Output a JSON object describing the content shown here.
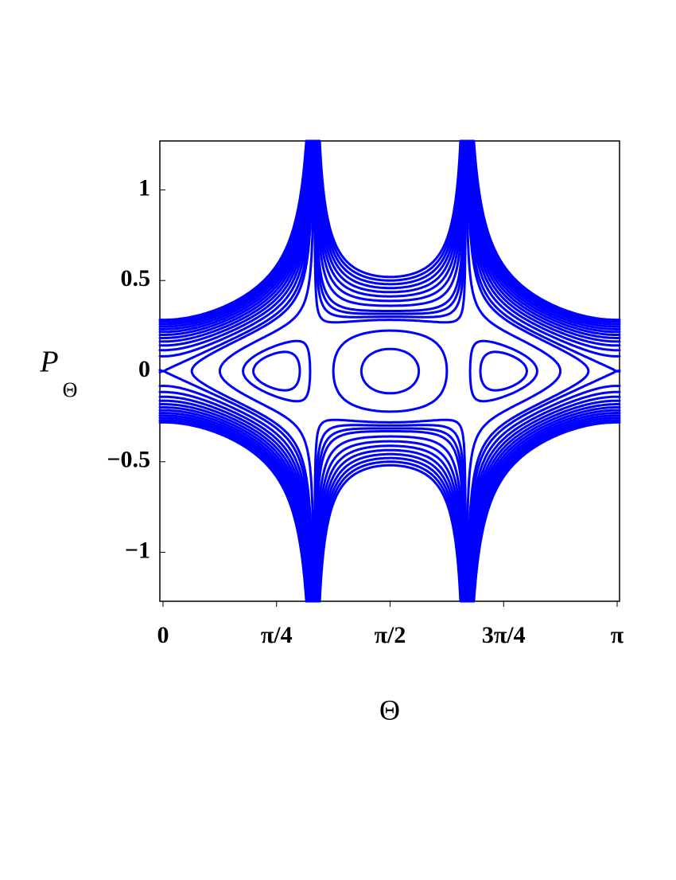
{
  "chart_data": {
    "type": "contour",
    "xlabel": "Θ",
    "ylabel": "P",
    "ylabel_subscript": "Θ",
    "xlim": [
      -0.022,
      3.158
    ],
    "ylim": [
      -1.27,
      1.27
    ],
    "xticks": [
      {
        "value": 0,
        "label": "0"
      },
      {
        "value": 0.785398,
        "label": "π/4"
      },
      {
        "value": 1.570796,
        "label": "π/2"
      },
      {
        "value": 2.356194,
        "label": "3π/4"
      },
      {
        "value": 3.141593,
        "label": "π"
      }
    ],
    "yticks": [
      {
        "value": -1,
        "label": "−1"
      },
      {
        "value": -0.5,
        "label": "−0.5"
      },
      0,
      0.5,
      1
    ],
    "levels": [
      -0.24,
      -0.22,
      -0.2,
      -0.18,
      -0.16,
      -0.14,
      -0.12,
      -0.1,
      -0.08,
      -0.06,
      -0.04,
      -0.02,
      0,
      0.015,
      0.05,
      0.08,
      0.09,
      0.1,
      0.11,
      0.13,
      0.15,
      0.17,
      0.19,
      0.21,
      0.23,
      0.25,
      0.27
    ],
    "color": "#0000ff"
  }
}
